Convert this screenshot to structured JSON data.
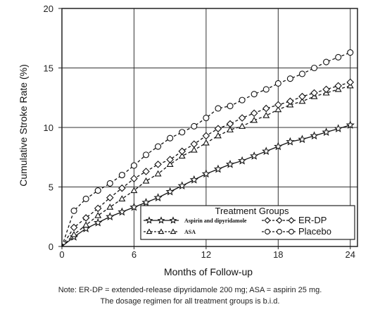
{
  "chart_data": {
    "type": "line",
    "xlabel": "Months of Follow-up",
    "ylabel": "Cumulative Stroke Rate (%)",
    "xlim": [
      0,
      24.6
    ],
    "ylim": [
      0,
      20
    ],
    "xticks": [
      0,
      6,
      12,
      18,
      24
    ],
    "yticks": [
      0,
      5,
      10,
      15,
      20
    ],
    "grid": true,
    "legend": {
      "title": "Treatment Groups",
      "placement": "bottom-right"
    },
    "series": [
      {
        "name": "Aspirin and dipyridamole",
        "marker": "star",
        "line": "solid",
        "x": [
          0,
          1,
          2,
          3,
          4,
          5,
          6,
          7,
          8,
          9,
          10,
          11,
          12,
          13,
          14,
          15,
          16,
          17,
          18,
          19,
          20,
          21,
          22,
          23,
          24
        ],
        "y": [
          0,
          0.8,
          1.5,
          2.0,
          2.5,
          2.9,
          3.3,
          3.7,
          4.1,
          4.6,
          5.1,
          5.6,
          6.1,
          6.5,
          6.9,
          7.2,
          7.6,
          8.0,
          8.4,
          8.8,
          9.0,
          9.3,
          9.6,
          9.9,
          10.2
        ]
      },
      {
        "name": "ASA",
        "marker": "triangle",
        "line": "dashed",
        "x": [
          0,
          1,
          2,
          3,
          4,
          5,
          6,
          7,
          8,
          9,
          10,
          11,
          12,
          13,
          14,
          15,
          16,
          17,
          18,
          19,
          20,
          21,
          22,
          23,
          24
        ],
        "y": [
          0,
          1.0,
          1.8,
          2.6,
          3.3,
          4.0,
          4.7,
          5.5,
          6.1,
          6.9,
          7.6,
          8.1,
          8.7,
          9.3,
          9.8,
          10.1,
          10.6,
          11.0,
          11.5,
          11.9,
          12.2,
          12.6,
          12.9,
          13.2,
          13.5
        ]
      },
      {
        "name": "ER-DP",
        "marker": "diamond",
        "line": "dashed",
        "x": [
          0,
          1,
          2,
          3,
          4,
          5,
          6,
          7,
          8,
          9,
          10,
          11,
          12,
          13,
          14,
          15,
          16,
          17,
          18,
          19,
          20,
          21,
          22,
          23,
          24
        ],
        "y": [
          0,
          1.6,
          2.4,
          3.2,
          4.1,
          4.9,
          5.7,
          6.3,
          6.9,
          7.3,
          8.0,
          8.6,
          9.3,
          9.9,
          10.3,
          10.8,
          11.2,
          11.6,
          11.9,
          12.2,
          12.6,
          12.9,
          13.2,
          13.5,
          13.8
        ]
      },
      {
        "name": "Placebo",
        "marker": "circle",
        "line": "dashed",
        "x": [
          0,
          1,
          2,
          3,
          4,
          5,
          6,
          7,
          8,
          9,
          10,
          11,
          12,
          13,
          14,
          15,
          16,
          17,
          18,
          19,
          20,
          21,
          22,
          23,
          24
        ],
        "y": [
          0,
          3.0,
          4.0,
          4.7,
          5.3,
          6.0,
          6.8,
          7.7,
          8.4,
          9.1,
          9.6,
          10.1,
          10.8,
          11.6,
          11.8,
          12.3,
          12.8,
          13.2,
          13.7,
          14.1,
          14.5,
          15.0,
          15.5,
          15.9,
          16.3
        ]
      }
    ]
  },
  "note": {
    "line1": "Note: ER-DP = extended-release dipyridamole 200 mg; ASA = aspirin 25 mg.",
    "line2": "The dosage regimen for all treatment groups is b.i.d."
  }
}
